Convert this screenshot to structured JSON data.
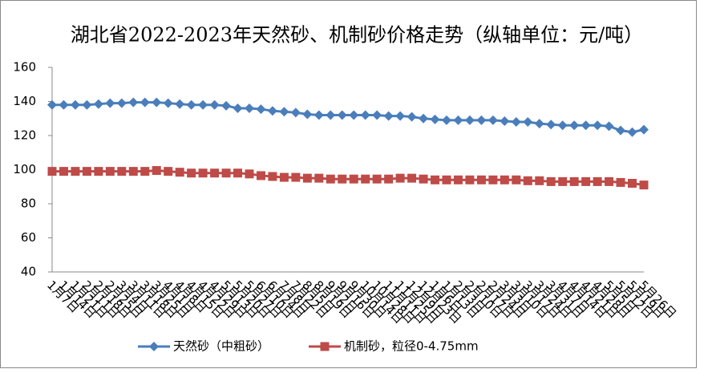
{
  "chart_data": {
    "type": "line",
    "title": "湖北省2022-2023年天然砂、机制砂价格走势（纵轴单位：元/吨）",
    "categories": [
      "1月7日",
      "1月14日",
      "1月21日",
      "2月11日",
      "2月18日",
      "2月25日",
      "3月4日",
      "3月11日",
      "3月18日",
      "3月25日",
      "4月1日",
      "4月8日",
      "4月15日",
      "4月22日",
      "4月29日",
      "5月13日",
      "5月20日",
      "5月27日",
      "6月10日",
      "6月24日",
      "7月8日",
      "7月22日",
      "8月5日",
      "8月19日",
      "9月2日",
      "9月16日",
      "9月30日",
      "10月14日",
      "10月28日",
      "11月11日",
      "11月25日",
      "12月9日",
      "12月23日",
      "1月6日",
      "1月13日",
      "2月3日",
      "2月10日",
      "2月17日",
      "2月24日",
      "3月3日",
      "3月10日",
      "3月17日",
      "3月24日",
      "3月31日",
      "4月7日",
      "4月14日",
      "4月21日",
      "4月28日",
      "5月5日",
      "5月12日",
      "5月19日",
      "5月26日"
    ],
    "series": [
      {
        "name": "天然砂（中粗砂）",
        "color": "#4a7ebb",
        "marker": "diamond",
        "values": [
          138,
          138,
          138,
          138,
          138.5,
          139,
          139,
          139.5,
          139.5,
          139.5,
          139,
          138.5,
          138,
          138,
          138,
          137.5,
          136,
          136,
          135.5,
          134.5,
          134,
          133.5,
          132.5,
          132,
          132,
          132,
          132,
          132,
          132,
          131.5,
          131.5,
          131,
          130,
          129.5,
          129,
          129,
          129,
          129,
          129,
          128.5,
          128,
          128,
          127,
          126.5,
          126,
          126,
          126,
          126,
          125.5,
          123,
          122,
          123.5
        ]
      },
      {
        "name": "机制砂，粒径0-4.75mm",
        "color": "#be4b48",
        "marker": "square",
        "values": [
          99,
          99,
          99,
          99,
          99,
          99,
          99,
          99,
          99,
          99.5,
          99,
          98.5,
          98,
          98,
          98,
          98,
          98,
          97.5,
          96.5,
          96,
          95.5,
          95.5,
          95,
          95,
          94.5,
          94.5,
          94.5,
          94.5,
          94.5,
          94.5,
          95,
          95,
          94.5,
          94,
          94,
          94,
          94,
          94,
          94,
          94,
          94,
          93.5,
          93.5,
          93,
          93,
          93,
          93,
          93,
          93,
          92.5,
          92,
          91
        ]
      }
    ],
    "ylim": [
      40,
      160
    ],
    "yticks": [
      40,
      60,
      80,
      100,
      120,
      140,
      160
    ]
  }
}
